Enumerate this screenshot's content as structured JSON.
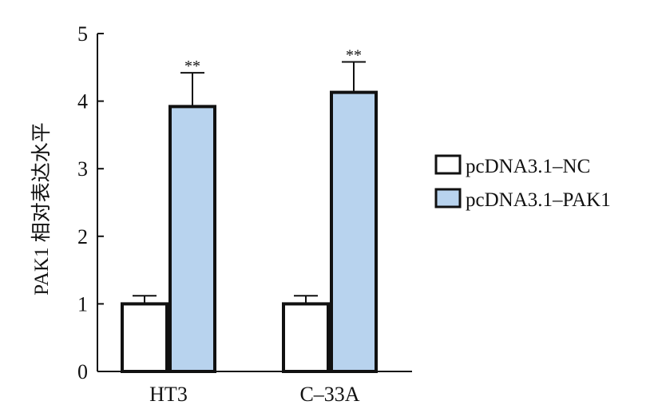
{
  "chart_data": {
    "type": "bar",
    "categories": [
      "HT3",
      "C–33A"
    ],
    "series": [
      {
        "name": "pcDNA3.1–NC",
        "values": [
          1.0,
          1.0
        ],
        "errors": [
          0.12,
          0.12
        ],
        "color": "#ffffff",
        "significance": [
          "",
          ""
        ]
      },
      {
        "name": "pcDNA3.1–PAK1",
        "values": [
          3.92,
          4.13
        ],
        "errors": [
          0.5,
          0.45
        ],
        "color": "#b8d3ee",
        "significance": [
          "**",
          "**"
        ]
      }
    ],
    "ylabel": "PAK1 相对表达水平",
    "ylim": [
      0,
      5
    ],
    "yticks": [
      0,
      1,
      2,
      3,
      4,
      5
    ],
    "legend_position": "right",
    "grid": false
  }
}
